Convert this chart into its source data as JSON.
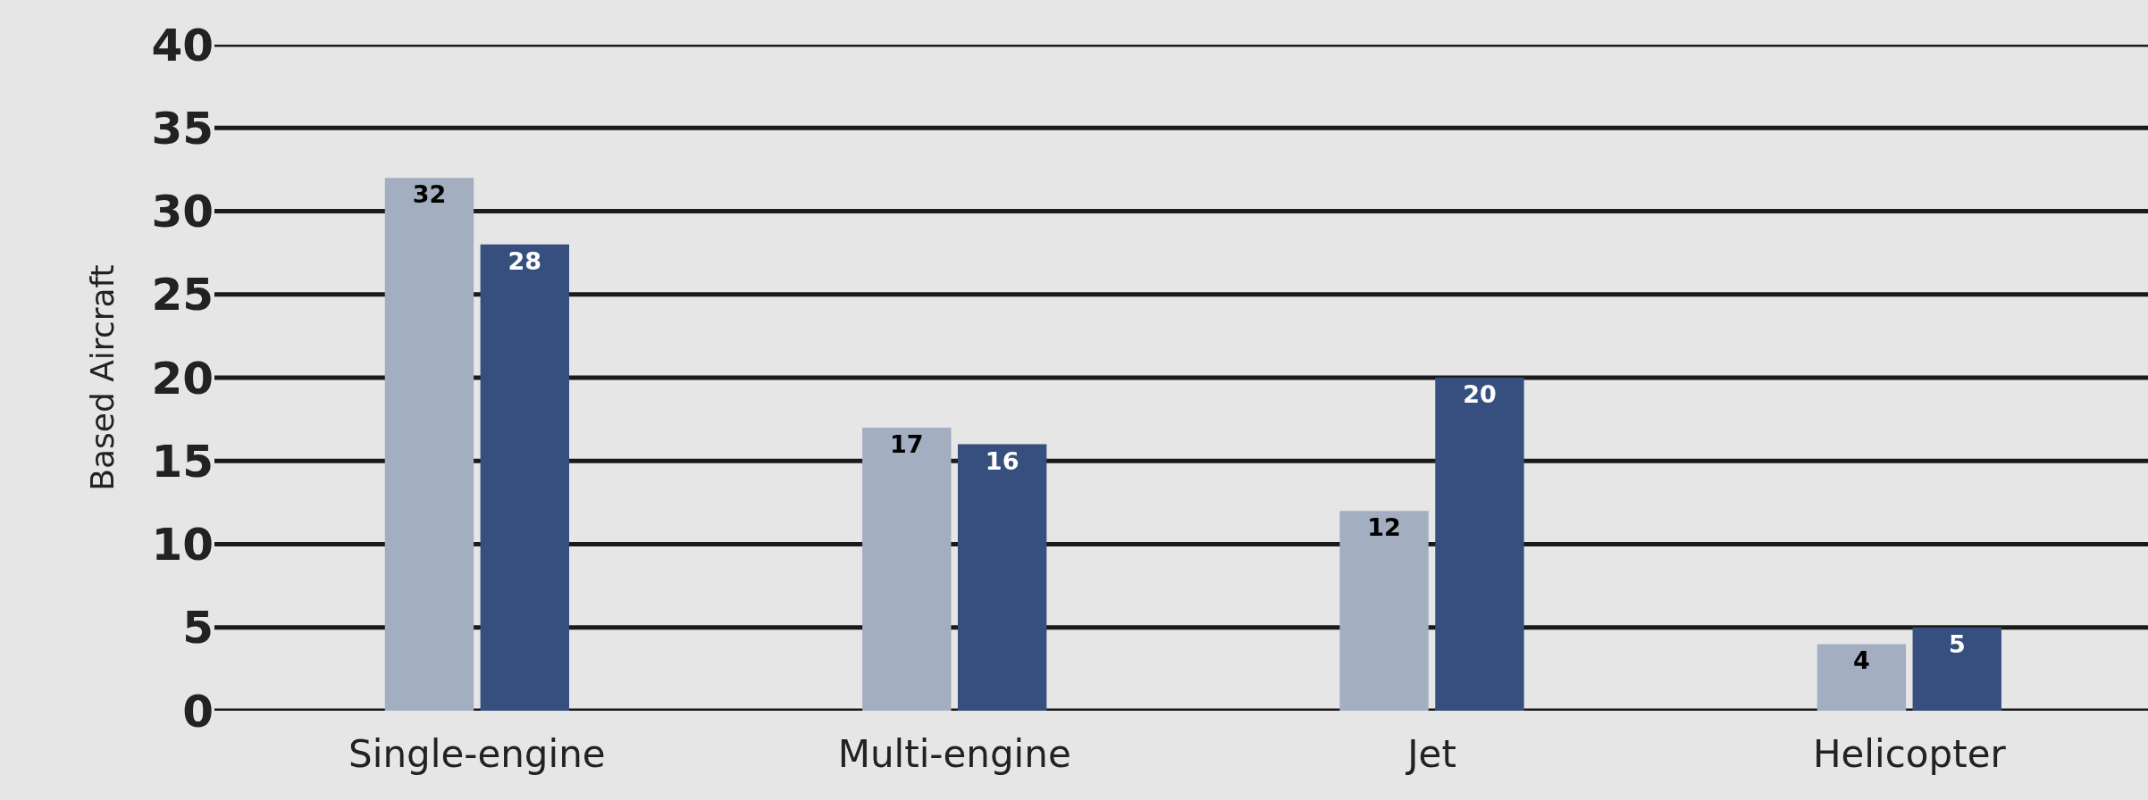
{
  "chart_data": {
    "type": "bar",
    "ylabel": "Based Aircraft",
    "categories": [
      "Single-engine",
      "Multi-engine",
      "Jet",
      "Helicopter"
    ],
    "series": [
      {
        "color": "#a3aec0",
        "values": [
          32,
          17,
          12,
          4
        ]
      },
      {
        "color": "#374f7e",
        "values": [
          28,
          16,
          20,
          5
        ]
      }
    ],
    "ylim": [
      0,
      40
    ],
    "yticks": [
      0,
      5,
      10,
      15,
      20,
      25,
      30,
      35,
      40
    ],
    "grid": "y",
    "data_labels": true
  }
}
